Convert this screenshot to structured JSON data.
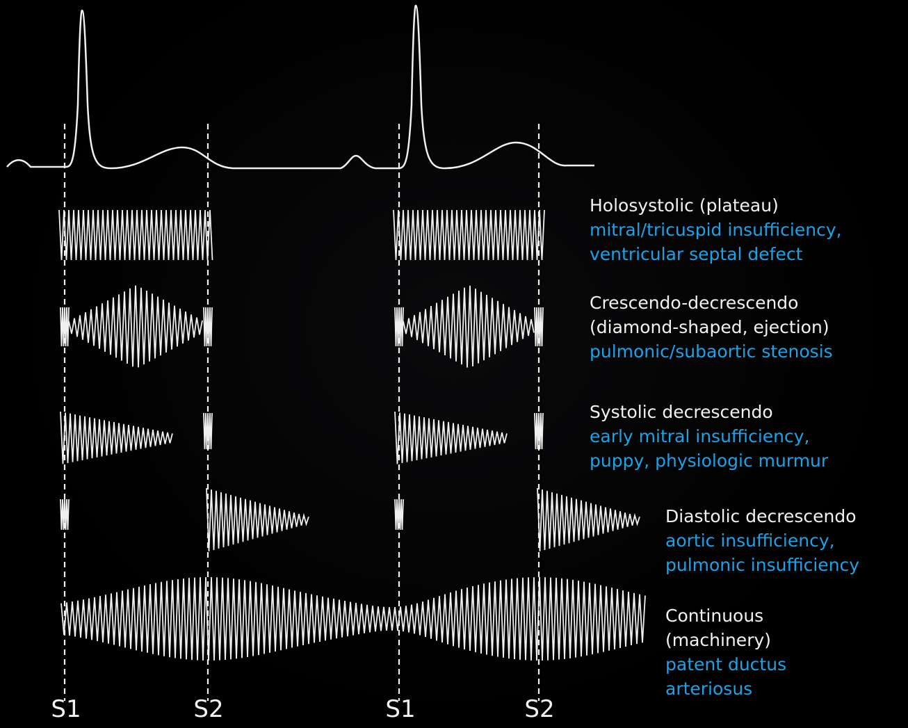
{
  "murmurs": [
    {
      "id": "holosystolic",
      "heading_lines": [
        "Holosystolic (plateau)"
      ],
      "desc_lines": [
        "mitral/tricuspid insufficiency,",
        "ventricular septal defect"
      ]
    },
    {
      "id": "crescendo-decrescendo",
      "heading_lines": [
        "Crescendo-decrescendo",
        "(diamond-shaped, ejection)"
      ],
      "desc_lines": [
        "pulmonic/subaortic stenosis"
      ]
    },
    {
      "id": "systolic-decrescendo",
      "heading_lines": [
        "Systolic decrescendo"
      ],
      "desc_lines": [
        "early mitral insufficiency,",
        "puppy, physiologic murmur"
      ]
    },
    {
      "id": "diastolic-decrescendo",
      "heading_lines": [
        "Diastolic decrescendo"
      ],
      "desc_lines": [
        "aortic insufficiency,",
        "pulmonic insufficiency"
      ]
    },
    {
      "id": "continuous",
      "heading_lines": [
        "Continuous",
        "(machinery)"
      ],
      "desc_lines": [
        "patent ductus",
        "arteriosus"
      ]
    }
  ],
  "beat_labels": [
    "S1",
    "S2",
    "S1",
    "S2"
  ],
  "colors": {
    "background": "#000000",
    "waveform": "#f0f0f0",
    "heading_text": "#f2f2f2",
    "description_text": "#1aa3e8"
  }
}
